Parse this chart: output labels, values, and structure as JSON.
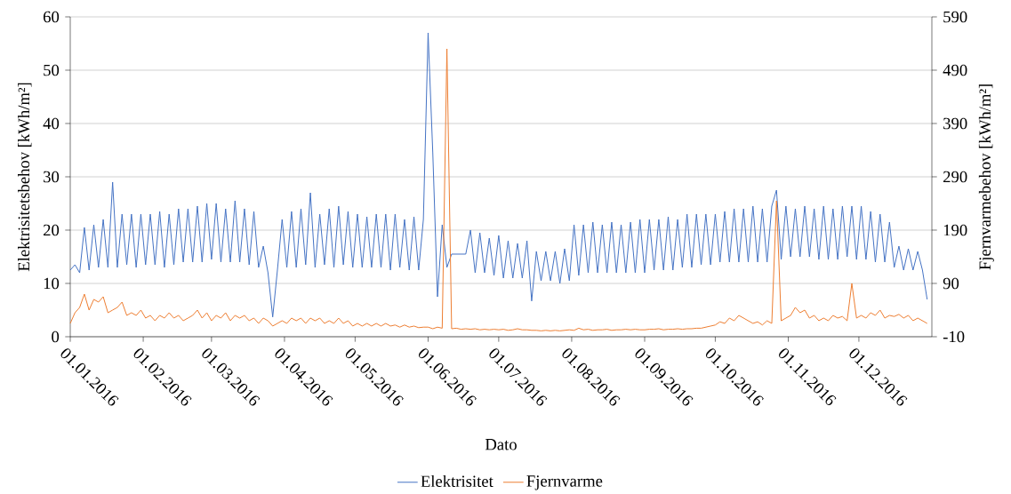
{
  "chart_data": {
    "type": "line",
    "xlabel": "Dato",
    "ylabel": "Elektrisitetsbehov [kWh/m²]",
    "y2label": "Fjernvarmebehov [kWh/m²]",
    "x": [
      "2016-01-01",
      "2016-01-03",
      "2016-01-05",
      "2016-01-07",
      "2016-01-09",
      "2016-01-11",
      "2016-01-13",
      "2016-01-15",
      "2016-01-17",
      "2016-01-19",
      "2016-01-21",
      "2016-01-23",
      "2016-01-25",
      "2016-01-27",
      "2016-01-29",
      "2016-01-31",
      "2016-02-02",
      "2016-02-04",
      "2016-02-06",
      "2016-02-08",
      "2016-02-10",
      "2016-02-12",
      "2016-02-14",
      "2016-02-16",
      "2016-02-18",
      "2016-02-20",
      "2016-02-22",
      "2016-02-24",
      "2016-02-26",
      "2016-02-28",
      "2016-03-01",
      "2016-03-03",
      "2016-03-05",
      "2016-03-07",
      "2016-03-09",
      "2016-03-11",
      "2016-03-13",
      "2016-03-15",
      "2016-03-17",
      "2016-03-19",
      "2016-03-21",
      "2016-03-23",
      "2016-03-25",
      "2016-03-27",
      "2016-03-29",
      "2016-03-31",
      "2016-04-02",
      "2016-04-04",
      "2016-04-06",
      "2016-04-08",
      "2016-04-10",
      "2016-04-12",
      "2016-04-14",
      "2016-04-16",
      "2016-04-18",
      "2016-04-20",
      "2016-04-22",
      "2016-04-24",
      "2016-04-26",
      "2016-04-28",
      "2016-04-30",
      "2016-05-02",
      "2016-05-04",
      "2016-05-06",
      "2016-05-08",
      "2016-05-10",
      "2016-05-12",
      "2016-05-14",
      "2016-05-16",
      "2016-05-18",
      "2016-05-20",
      "2016-05-22",
      "2016-05-24",
      "2016-05-26",
      "2016-05-28",
      "2016-05-30",
      "2016-06-01",
      "2016-06-03",
      "2016-06-05",
      "2016-06-07",
      "2016-06-09",
      "2016-06-11",
      "2016-06-13",
      "2016-06-15",
      "2016-06-17",
      "2016-06-19",
      "2016-06-21",
      "2016-06-23",
      "2016-06-25",
      "2016-06-27",
      "2016-06-29",
      "2016-07-01",
      "2016-07-03",
      "2016-07-05",
      "2016-07-07",
      "2016-07-09",
      "2016-07-11",
      "2016-07-13",
      "2016-07-15",
      "2016-07-17",
      "2016-07-19",
      "2016-07-21",
      "2016-07-23",
      "2016-07-25",
      "2016-07-27",
      "2016-07-29",
      "2016-07-31",
      "2016-08-02",
      "2016-08-04",
      "2016-08-06",
      "2016-08-08",
      "2016-08-10",
      "2016-08-12",
      "2016-08-14",
      "2016-08-16",
      "2016-08-18",
      "2016-08-20",
      "2016-08-22",
      "2016-08-24",
      "2016-08-26",
      "2016-08-28",
      "2016-08-30",
      "2016-09-01",
      "2016-09-03",
      "2016-09-05",
      "2016-09-07",
      "2016-09-09",
      "2016-09-11",
      "2016-09-13",
      "2016-09-15",
      "2016-09-17",
      "2016-09-19",
      "2016-09-21",
      "2016-09-23",
      "2016-09-25",
      "2016-09-27",
      "2016-09-29",
      "2016-10-01",
      "2016-10-03",
      "2016-10-05",
      "2016-10-07",
      "2016-10-09",
      "2016-10-11",
      "2016-10-13",
      "2016-10-15",
      "2016-10-17",
      "2016-10-19",
      "2016-10-21",
      "2016-10-23",
      "2016-10-25",
      "2016-10-27",
      "2016-10-29",
      "2016-10-31",
      "2016-11-02",
      "2016-11-04",
      "2016-11-06",
      "2016-11-08",
      "2016-11-10",
      "2016-11-12",
      "2016-11-14",
      "2016-11-16",
      "2016-11-18",
      "2016-11-20",
      "2016-11-22",
      "2016-11-24",
      "2016-11-26",
      "2016-11-28",
      "2016-11-30",
      "2016-12-02",
      "2016-12-04",
      "2016-12-06",
      "2016-12-08",
      "2016-12-10",
      "2016-12-12",
      "2016-12-14",
      "2016-12-16",
      "2016-12-18",
      "2016-12-20",
      "2016-12-22",
      "2016-12-24",
      "2016-12-26",
      "2016-12-28",
      "2016-12-30"
    ],
    "series": [
      {
        "name": "Elektrisitet",
        "color": "#4472c4",
        "values": [
          12.5,
          13.5,
          12,
          20.5,
          12.5,
          21,
          13,
          22,
          13,
          29,
          13,
          23,
          13.5,
          23,
          13,
          23,
          13.5,
          23,
          13.5,
          23.5,
          13,
          23,
          13.5,
          24,
          14,
          24,
          14,
          24.5,
          14,
          25,
          14.5,
          25,
          14,
          24,
          14,
          25.5,
          14,
          24,
          13.5,
          23.5,
          13,
          17,
          12,
          3.7,
          12.5,
          22,
          13,
          23.5,
          13,
          24,
          13.5,
          27,
          13,
          23,
          13.5,
          24,
          13,
          24.5,
          13.5,
          23.5,
          13,
          23,
          13,
          22.5,
          13,
          23,
          13,
          23,
          12.5,
          23,
          13,
          22,
          12.5,
          22.5,
          12.5,
          22,
          57,
          34.5,
          7.5,
          21,
          13,
          15.5,
          15.5,
          15.5,
          15.5,
          20,
          12,
          19.5,
          12,
          18.5,
          11.5,
          19,
          11,
          18,
          11,
          17.5,
          11,
          18,
          6.7,
          16,
          10.5,
          16,
          10.5,
          16,
          10,
          16.5,
          10.5,
          21,
          11.5,
          21,
          12,
          21.5,
          12,
          21,
          12,
          21.5,
          12,
          21,
          12,
          21.5,
          12,
          22,
          12,
          22,
          12.5,
          22,
          12.5,
          22.5,
          12.5,
          22,
          13,
          23,
          13,
          23,
          13.5,
          23,
          13.5,
          23,
          14,
          23.5,
          14,
          24,
          14,
          24,
          14,
          24.5,
          14,
          24,
          14,
          24.5,
          27.5,
          14.5,
          24.5,
          15,
          24,
          15,
          24.5,
          15,
          24,
          14.5,
          24.5,
          14.5,
          24,
          14.5,
          24.5,
          15,
          24.5,
          14.5,
          24.5,
          14.5,
          23.5,
          14,
          23,
          14,
          21.5,
          13,
          17,
          12.5,
          16.5,
          12.5,
          16,
          12.5,
          7
        ]
      },
      {
        "name": "Fjernvarme",
        "color": "#ed7d31",
        "axis": "y2",
        "values": [
          15,
          35,
          45,
          70,
          40,
          60,
          55,
          65,
          35,
          40,
          45,
          55,
          30,
          35,
          30,
          40,
          25,
          30,
          20,
          30,
          25,
          35,
          25,
          30,
          20,
          25,
          30,
          40,
          25,
          35,
          20,
          30,
          25,
          35,
          20,
          30,
          25,
          30,
          20,
          25,
          15,
          25,
          20,
          10,
          15,
          20,
          15,
          25,
          20,
          25,
          15,
          25,
          20,
          25,
          15,
          20,
          15,
          25,
          15,
          20,
          10,
          15,
          10,
          15,
          10,
          15,
          10,
          15,
          10,
          12,
          8,
          12,
          8,
          10,
          7,
          8,
          8,
          5,
          8,
          6,
          530,
          5,
          6,
          4,
          5,
          4,
          5,
          3,
          4,
          3,
          4,
          3,
          4,
          2,
          3,
          5,
          3,
          3,
          2,
          2,
          1,
          2,
          1,
          2,
          1,
          2,
          3,
          2,
          6,
          3,
          4,
          2,
          3,
          3,
          4,
          2,
          3,
          3,
          4,
          3,
          4,
          3,
          3,
          4,
          4,
          5,
          3,
          4,
          4,
          5,
          4,
          5,
          5,
          6,
          6,
          8,
          10,
          12,
          18,
          15,
          25,
          20,
          30,
          25,
          20,
          15,
          18,
          12,
          20,
          15,
          245,
          20,
          25,
          30,
          45,
          35,
          40,
          25,
          30,
          20,
          25,
          20,
          30,
          25,
          28,
          20,
          90,
          25,
          30,
          25,
          35,
          30,
          40,
          25,
          30,
          28,
          32,
          25,
          30,
          20,
          25,
          20,
          15
        ]
      }
    ],
    "xlim": [
      "2016-01-01",
      "2017-01-01"
    ],
    "xticks": [
      {
        "value": "2016-01-01",
        "label": "01.01.2016"
      },
      {
        "value": "2016-02-01",
        "label": "01.02.2016"
      },
      {
        "value": "2016-03-01",
        "label": "01.03.2016"
      },
      {
        "value": "2016-04-01",
        "label": "01.04.2016"
      },
      {
        "value": "2016-05-01",
        "label": "01.05.2016"
      },
      {
        "value": "2016-06-01",
        "label": "01.06.2016"
      },
      {
        "value": "2016-07-01",
        "label": "01.07.2016"
      },
      {
        "value": "2016-08-01",
        "label": "01.08.2016"
      },
      {
        "value": "2016-09-01",
        "label": "01.09.2016"
      },
      {
        "value": "2016-10-01",
        "label": "01.10.2016"
      },
      {
        "value": "2016-11-01",
        "label": "01.11.2016"
      },
      {
        "value": "2016-12-01",
        "label": "01.12.2016"
      }
    ],
    "ylim": [
      0,
      60
    ],
    "yticks": [
      0,
      10,
      20,
      30,
      40,
      50,
      60
    ],
    "y2lim": [
      -10,
      590
    ],
    "y2ticks": [
      -10,
      90,
      190,
      290,
      390,
      490,
      590
    ],
    "grid": "y",
    "legend": "bottom"
  }
}
